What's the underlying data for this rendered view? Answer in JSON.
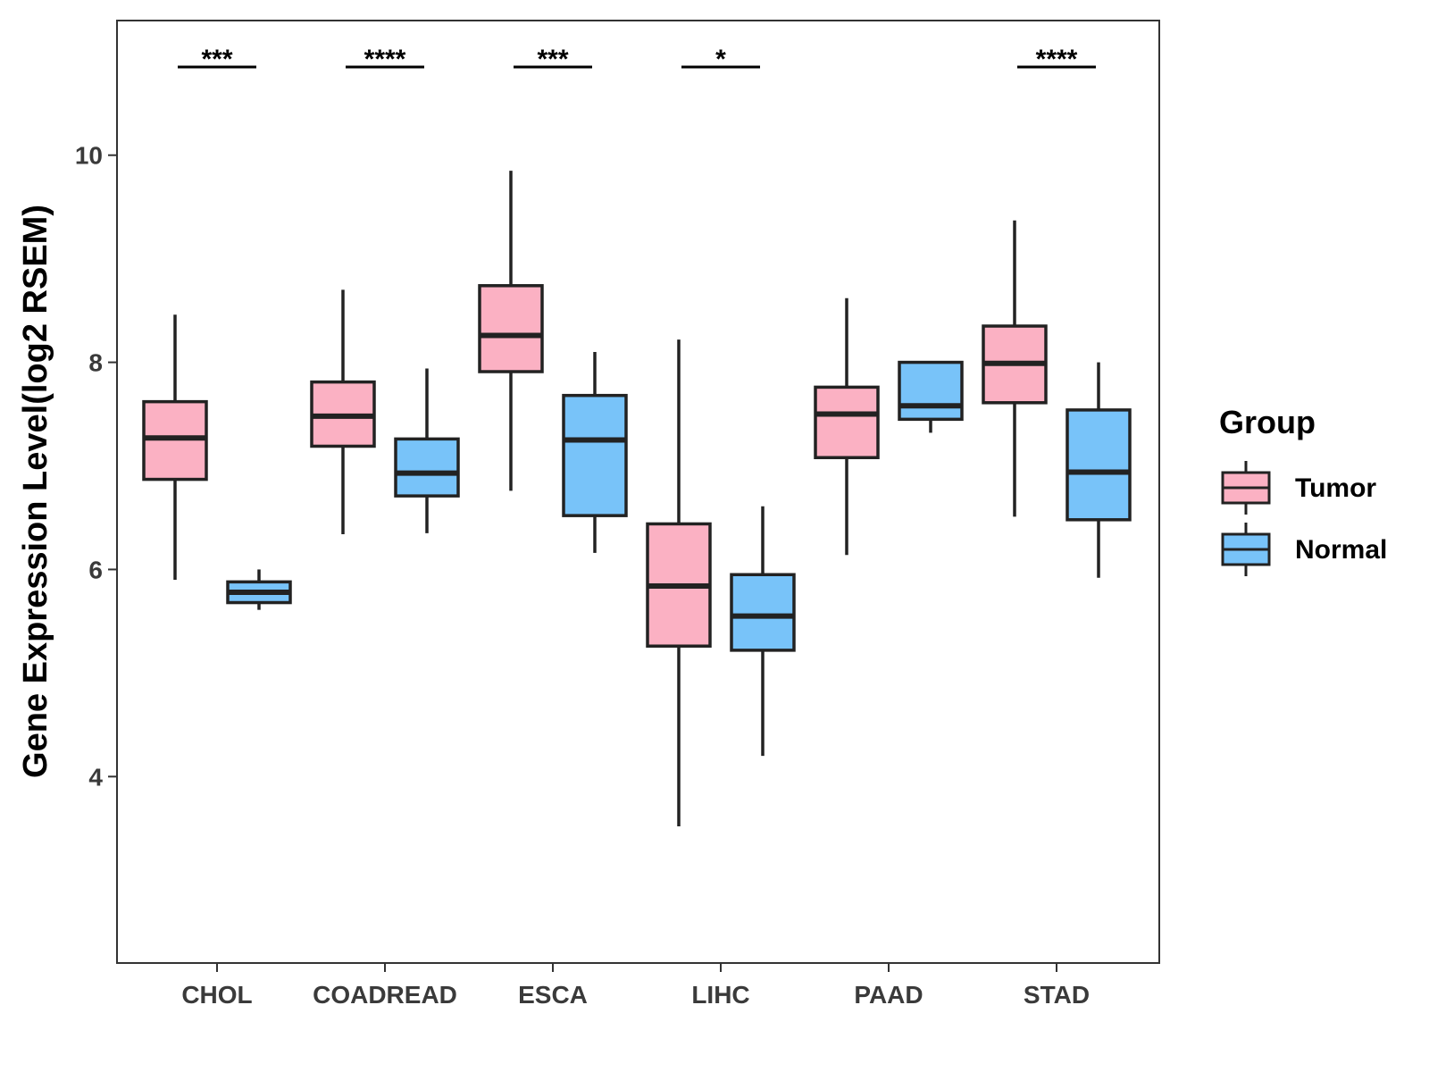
{
  "chart_data": {
    "type": "boxplot",
    "title": "",
    "xlabel": "",
    "ylabel": "Gene Expression Level(log2 RSEM)",
    "ylim": [
      2.2,
      11.3
    ],
    "yticks": [
      4,
      6,
      8,
      10
    ],
    "grid": false,
    "legend": {
      "title": "Group",
      "position": "right"
    },
    "categories": [
      "CHOL",
      "COADREAD",
      "ESCA",
      "LIHC",
      "PAAD",
      "STAD"
    ],
    "series": [
      {
        "name": "Tumor",
        "color": "#FBB1C3",
        "boxes": [
          {
            "category": "CHOL",
            "whisker_low": 5.9,
            "q1": 6.87,
            "median": 7.27,
            "q3": 7.62,
            "whisker_high": 8.46
          },
          {
            "category": "COADREAD",
            "whisker_low": 6.34,
            "q1": 7.19,
            "median": 7.48,
            "q3": 7.81,
            "whisker_high": 8.7
          },
          {
            "category": "ESCA",
            "whisker_low": 6.76,
            "q1": 7.91,
            "median": 8.26,
            "q3": 8.74,
            "whisker_high": 9.85
          },
          {
            "category": "LIHC",
            "whisker_low": 3.52,
            "q1": 5.26,
            "median": 5.84,
            "q3": 6.44,
            "whisker_high": 8.22
          },
          {
            "category": "PAAD",
            "whisker_low": 6.14,
            "q1": 7.08,
            "median": 7.5,
            "q3": 7.76,
            "whisker_high": 8.62
          },
          {
            "category": "STAD",
            "whisker_low": 6.51,
            "q1": 7.61,
            "median": 7.99,
            "q3": 8.35,
            "whisker_high": 9.37
          }
        ]
      },
      {
        "name": "Normal",
        "color": "#78C3F9",
        "boxes": [
          {
            "category": "CHOL",
            "whisker_low": 5.61,
            "q1": 5.68,
            "median": 5.78,
            "q3": 5.88,
            "whisker_high": 6.0
          },
          {
            "category": "COADREAD",
            "whisker_low": 6.35,
            "q1": 6.71,
            "median": 6.93,
            "q3": 7.26,
            "whisker_high": 7.94
          },
          {
            "category": "ESCA",
            "whisker_low": 6.16,
            "q1": 6.52,
            "median": 7.25,
            "q3": 7.68,
            "whisker_high": 8.1
          },
          {
            "category": "LIHC",
            "whisker_low": 4.2,
            "q1": 5.22,
            "median": 5.55,
            "q3": 5.95,
            "whisker_high": 6.61
          },
          {
            "category": "PAAD",
            "whisker_low": 7.32,
            "q1": 7.45,
            "median": 7.58,
            "q3": 8.0,
            "whisker_high": 8.0
          },
          {
            "category": "STAD",
            "whisker_low": 5.92,
            "q1": 6.48,
            "median": 6.94,
            "q3": 7.54,
            "whisker_high": 8.0
          }
        ]
      }
    ],
    "annotations": [
      {
        "category": "CHOL",
        "text": "***"
      },
      {
        "category": "COADREAD",
        "text": "****"
      },
      {
        "category": "ESCA",
        "text": "***"
      },
      {
        "category": "LIHC",
        "text": "*"
      },
      {
        "category": "STAD",
        "text": "****"
      }
    ]
  }
}
